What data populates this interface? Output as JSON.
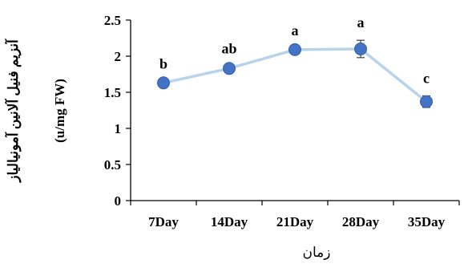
{
  "chart_data": {
    "type": "line",
    "categories": [
      "7Day",
      "14Day",
      "21Day",
      "28Day",
      "35Day"
    ],
    "values": [
      1.63,
      1.83,
      2.09,
      2.1,
      1.37
    ],
    "errors": [
      0.02,
      0.03,
      0.02,
      0.12,
      0.08
    ],
    "significance": [
      "b",
      "ab",
      "a",
      "a",
      "c"
    ],
    "xlabel": "زمان",
    "ylabel_line1": "آنزیم فنیل آلانین آمونیالیاز",
    "ylabel_line2": "(u/mg FW)",
    "ylim": [
      0,
      2.5
    ],
    "yticks": [
      "0",
      "0.5",
      "1",
      "1.5",
      "2",
      "2.5"
    ],
    "grid": false,
    "colors": {
      "line": "#b8d3ec",
      "marker": "#4472c4",
      "axis": "#000000"
    }
  }
}
